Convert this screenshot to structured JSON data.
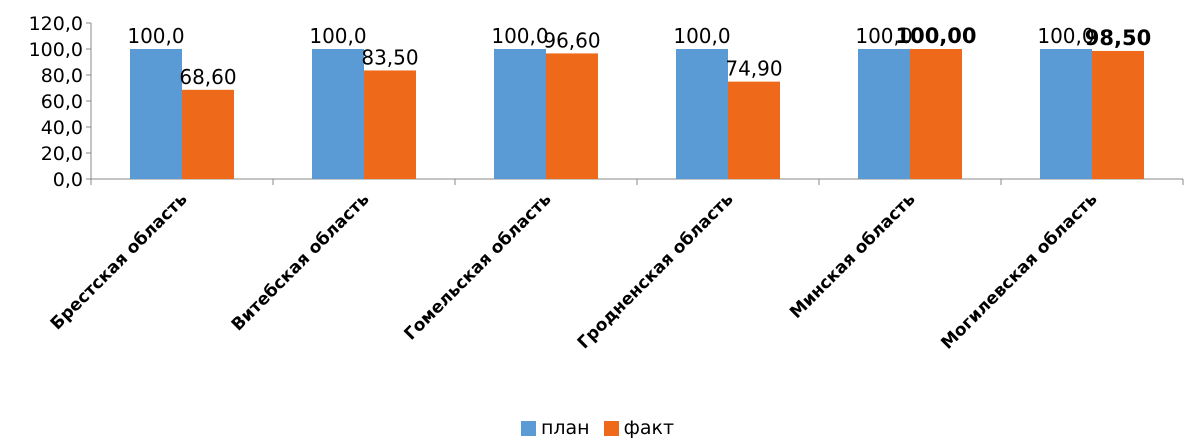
{
  "chart_data": {
    "type": "bar",
    "categories": [
      "Брестская область",
      "Витебская область",
      "Гомельская область",
      "Гродненская область",
      "Минская область",
      "Могилевская область"
    ],
    "series": [
      {
        "name": "план",
        "color": "#5B9BD5",
        "values": [
          100.0,
          100.0,
          100.0,
          100.0,
          100.0,
          100.0
        ],
        "labels": [
          "100,0",
          "100,0",
          "100,0",
          "100,0",
          "100,0",
          "100,0"
        ]
      },
      {
        "name": "факт",
        "color": "#EE6A1A",
        "values": [
          68.6,
          83.5,
          96.6,
          74.9,
          100.0,
          98.5
        ],
        "labels": [
          "68,60",
          "83,50",
          "96,60",
          "74,90",
          "100,00",
          "98,50"
        ],
        "bold": [
          false,
          false,
          false,
          false,
          true,
          true
        ]
      }
    ],
    "ylim": [
      0,
      120
    ],
    "yticks": [
      "0,0",
      "20,0",
      "40,0",
      "60,0",
      "80,0",
      "100,0",
      "120,0"
    ],
    "grid": false,
    "legend": "bottom-center",
    "title": "",
    "xlabel": "",
    "ylabel": ""
  }
}
